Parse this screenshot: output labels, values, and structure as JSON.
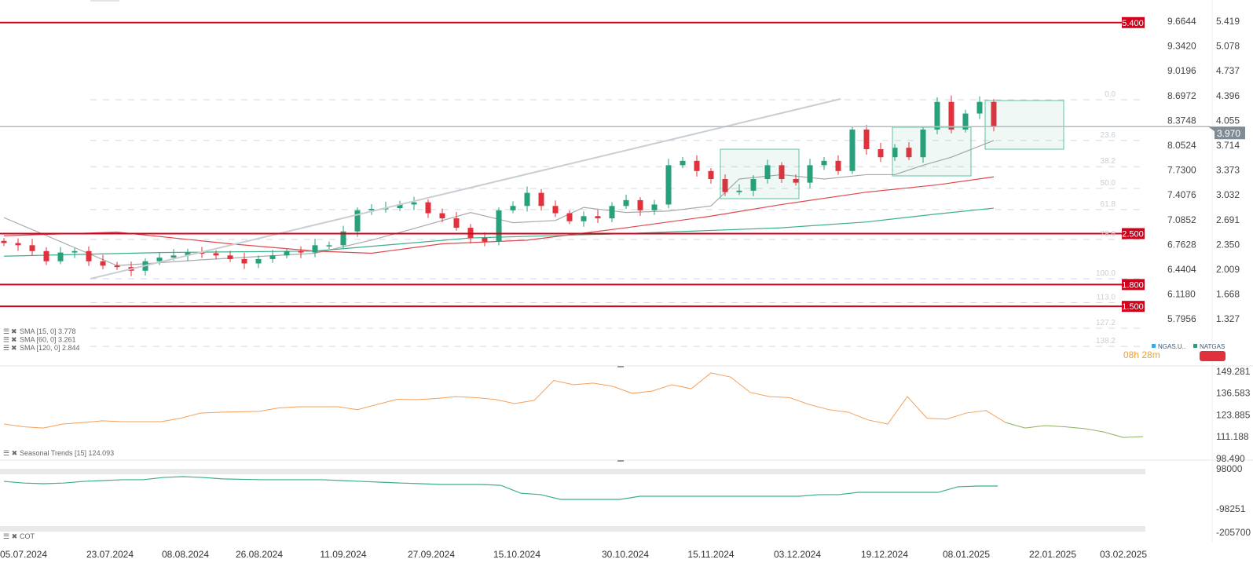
{
  "chart_data": {
    "type": "candlestick",
    "instrument": "NATGAS",
    "secondary_instrument": "NGAS.U..",
    "countdown": "08h 28m",
    "current_price": "3.970",
    "closes": [
      2.37,
      2.34,
      2.26,
      2.12,
      2.24,
      2.26,
      2.12,
      2.06,
      2.04,
      1.99,
      2.12,
      2.17,
      2.2,
      2.24,
      2.23,
      2.2,
      2.15,
      2.09,
      2.15,
      2.2,
      2.26,
      2.24,
      2.34,
      2.34,
      2.53,
      2.82,
      2.84,
      2.85,
      2.9,
      2.93,
      2.78,
      2.71,
      2.58,
      2.44,
      2.39,
      2.82,
      2.88,
      3.06,
      2.88,
      2.78,
      2.67,
      2.74,
      2.71,
      2.88,
      2.96,
      2.82,
      2.9,
      3.44,
      3.5,
      3.36,
      3.25,
      3.07,
      3.09,
      3.25,
      3.44,
      3.25,
      3.2,
      3.44,
      3.5,
      3.36,
      3.93,
      3.66,
      3.55,
      3.68,
      3.55,
      3.93,
      4.31,
      3.93,
      4.15,
      4.31,
      3.97
    ],
    "first_open": 2.4,
    "sma": [
      {
        "name": "SMA [15, 0] 3.778",
        "color": "#a9a9a9",
        "points": [
          [
            0,
            2.72
          ],
          [
            8,
            2.06
          ],
          [
            14,
            2.14
          ],
          [
            22,
            2.23
          ],
          [
            26,
            2.41
          ],
          [
            29,
            2.57
          ],
          [
            33,
            2.79
          ],
          [
            36,
            2.65
          ],
          [
            39,
            2.68
          ],
          [
            41,
            2.86
          ],
          [
            44,
            2.79
          ],
          [
            47,
            2.81
          ],
          [
            50,
            2.88
          ],
          [
            52,
            3.25
          ],
          [
            55,
            3.31
          ],
          [
            58,
            3.25
          ],
          [
            61,
            3.31
          ],
          [
            63,
            3.31
          ],
          [
            65,
            3.44
          ],
          [
            67,
            3.55
          ],
          [
            70,
            3.78
          ]
        ]
      },
      {
        "name": "SMA [60, 0] 3.261",
        "color": "#e0474c",
        "points": [
          [
            0,
            2.47
          ],
          [
            8,
            2.52
          ],
          [
            16,
            2.36
          ],
          [
            22,
            2.26
          ],
          [
            26,
            2.23
          ],
          [
            31,
            2.36
          ],
          [
            37,
            2.41
          ],
          [
            44,
            2.58
          ],
          [
            50,
            2.74
          ],
          [
            55,
            2.9
          ],
          [
            61,
            3.07
          ],
          [
            66,
            3.17
          ],
          [
            70,
            3.28
          ]
        ]
      },
      {
        "name": "SMA [120, 0] 2.844",
        "color": "#3bb08a",
        "points": [
          [
            0,
            2.19
          ],
          [
            11,
            2.24
          ],
          [
            22,
            2.26
          ],
          [
            33,
            2.44
          ],
          [
            44,
            2.5
          ],
          [
            55,
            2.58
          ],
          [
            61,
            2.66
          ],
          [
            66,
            2.77
          ],
          [
            70,
            2.85
          ]
        ]
      }
    ],
    "right_axis_ticks": [
      "5.419",
      "5.078",
      "4.737",
      "4.396",
      "4.055",
      "3.714",
      "3.373",
      "3.032",
      "2.691",
      "2.350",
      "2.009",
      "1.668",
      "1.327"
    ],
    "left_axis_ticks": [
      "9.6644",
      "9.3420",
      "9.0196",
      "8.6972",
      "8.3748",
      "8.0524",
      "7.7300",
      "7.4076",
      "7.0852",
      "6.7628",
      "6.4404",
      "6.1180",
      "5.7956"
    ],
    "horizontal_levels": [
      {
        "label": "5.400",
        "value": 5.4
      },
      {
        "label": "2.500",
        "value": 2.5
      },
      {
        "label": "1.800",
        "value": 1.8
      },
      {
        "label": "1.500",
        "value": 1.5
      }
    ],
    "fib_levels": [
      {
        "label": "0.0",
        "value": 4.34
      },
      {
        "label": "23.6",
        "value": 3.78
      },
      {
        "label": "38.2",
        "value": 3.42
      },
      {
        "label": "50.0",
        "value": 3.12
      },
      {
        "label": "61.8",
        "value": 2.83
      },
      {
        "label": "78.6",
        "value": 2.42
      },
      {
        "label": "100.0",
        "value": 1.88
      },
      {
        "label": "113.0",
        "value": 1.55
      },
      {
        "label": "127.2",
        "value": 1.2
      },
      {
        "label": "138.2",
        "value": 0.95
      }
    ],
    "x_ticks": [
      "05.07.2024",
      "23.07.2024",
      "08.08.2024",
      "26.08.2024",
      "11.09.2024",
      "27.09.2024",
      "15.10.2024",
      "30.10.2024",
      "15.11.2024",
      "03.12.2024",
      "19.12.2024",
      "08.01.2025",
      "22.01.2025",
      "03.02.2025"
    ],
    "seasonal": {
      "legend": "Seasonal  Trends  [15]  124.093",
      "ticks": [
        "149.281",
        "136.583",
        "123.885",
        "111.188",
        "98.490"
      ],
      "range": [
        98.49,
        149.281
      ],
      "values": [
        118.6,
        117,
        116.3,
        118.6,
        119.5,
        120.5,
        120,
        120,
        120,
        122,
        125,
        125.5,
        125.8,
        126,
        128,
        128.7,
        128.7,
        128.7,
        127,
        130,
        133,
        132.8,
        133.5,
        134.6,
        134,
        133,
        130.5,
        132.4,
        144,
        141.5,
        142.5,
        140.6,
        136.5,
        137.8,
        141.5,
        139.2,
        148.4,
        146,
        137,
        134.6,
        134,
        130,
        127,
        125.5,
        121,
        118.6,
        134.6,
        122,
        121.5,
        125,
        126.5,
        119.5,
        116.3,
        117.7,
        117,
        116,
        114,
        110.8,
        111.3
      ]
    },
    "cot": {
      "legend": "COT",
      "ticks": [
        "98000",
        "-98251",
        "-205700"
      ],
      "range": [
        -205700,
        98000
      ],
      "values": [
        37000,
        29000,
        26000,
        29000,
        37000,
        41000,
        45000,
        45000,
        56000,
        60000,
        56000,
        49000,
        47000,
        45000,
        45000,
        45000,
        45000,
        41000,
        37000,
        33000,
        29000,
        26000,
        22000,
        22000,
        22000,
        18000,
        -20000,
        -27000,
        -50000,
        -50000,
        -50000,
        -50000,
        -35000,
        -35000,
        -35000,
        -35000,
        -35000,
        -35000,
        -35000,
        -35000,
        -35000,
        -27000,
        -27000,
        -16000,
        -16000,
        -16000,
        -16000,
        -16000,
        11000,
        14500,
        14500
      ]
    }
  },
  "colors": {
    "up": "#26a17b",
    "down": "#e0313d",
    "level": "#d0021b",
    "price_tag": "#7f8c96"
  }
}
